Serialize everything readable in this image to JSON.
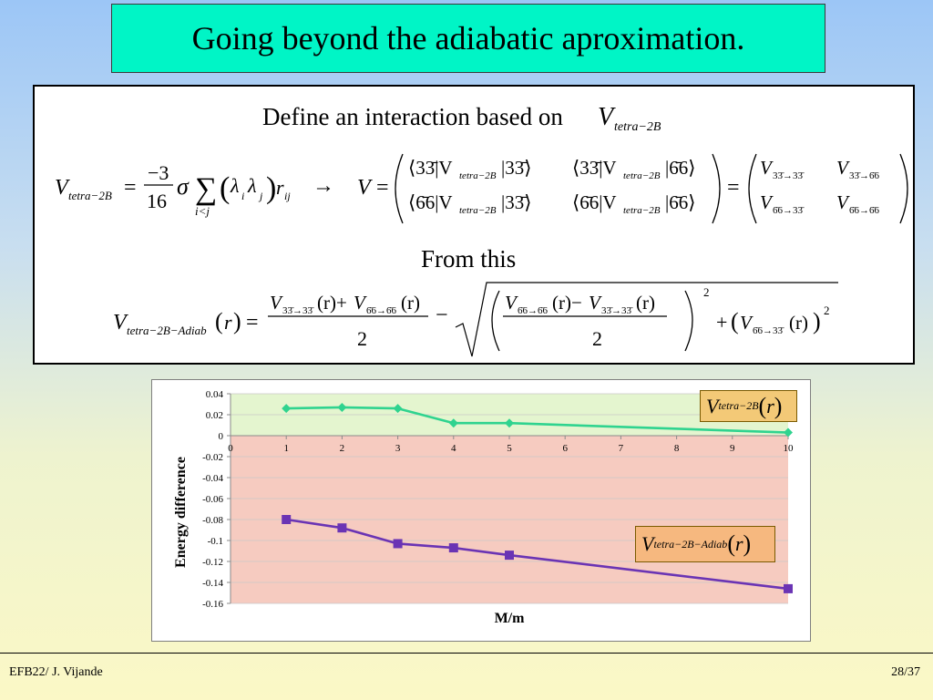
{
  "slide": {
    "title": "Going beyond the adiabatic aproximation.",
    "footer_left": "EFB22/ J. Vijande",
    "footer_right": "28/37"
  },
  "formulas": {
    "intro_text": "Define an interaction based on",
    "intro_symbol": "V",
    "intro_sub": "tetra−2B",
    "from_this": "From this"
  },
  "chart_data": {
    "type": "line",
    "title": "",
    "xlabel": "M/m",
    "ylabel": "Energy difference",
    "xlim": [
      0,
      10
    ],
    "ylim": [
      -0.16,
      0.04
    ],
    "x_ticks": [
      "0",
      "1",
      "2",
      "3",
      "4",
      "5",
      "6",
      "7",
      "8",
      "9",
      "10"
    ],
    "y_ticks": [
      "0.04",
      "0.02",
      "0",
      "-0.02",
      "-0.04",
      "-0.06",
      "-0.08",
      "-0.1",
      "-0.12",
      "-0.14",
      "-0.16"
    ],
    "positive_region_color": "#e4f5cf",
    "negative_region_color": "#f6cbc0",
    "series": [
      {
        "name": "V tetra−2B (r)",
        "color": "#2fd38f",
        "marker": "diamond",
        "x": [
          1,
          2,
          3,
          4,
          5,
          10
        ],
        "y": [
          0.026,
          0.027,
          0.026,
          0.012,
          0.012,
          0.003
        ]
      },
      {
        "name": "V tetra−2B−Adiab (r)",
        "color": "#6a34b4",
        "marker": "square",
        "x": [
          1,
          2,
          3,
          4,
          5,
          10
        ],
        "y": [
          -0.08,
          -0.088,
          -0.103,
          -0.107,
          -0.114,
          -0.146
        ]
      }
    ],
    "legend": {
      "green_symbol": "V",
      "green_sub": "tetra−2B",
      "purple_symbol": "V",
      "purple_sub": "tetra−2B−Adiab",
      "arg": "r"
    }
  }
}
